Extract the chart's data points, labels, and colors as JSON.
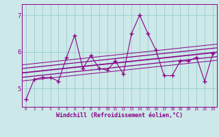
{
  "x_data": [
    0,
    1,
    2,
    3,
    4,
    5,
    6,
    7,
    8,
    9,
    10,
    11,
    12,
    13,
    14,
    15,
    16,
    17,
    18,
    19,
    20,
    21,
    22,
    23
  ],
  "y_data": [
    4.7,
    5.25,
    5.3,
    5.3,
    5.2,
    5.85,
    6.45,
    5.55,
    5.9,
    5.55,
    5.5,
    5.75,
    5.4,
    6.5,
    7.0,
    6.5,
    6.05,
    5.35,
    5.35,
    5.75,
    5.75,
    5.85,
    5.2,
    5.95
  ],
  "bg_color": "#cce8e8",
  "line_color": "#880088",
  "grid_color": "#99cccc",
  "xlabel": "Windchill (Refroidissement éolien,°C)",
  "xlim": [
    -0.5,
    23.5
  ],
  "ylim": [
    4.5,
    7.3
  ],
  "yticks": [
    5,
    6,
    7
  ],
  "xticks": [
    0,
    1,
    2,
    3,
    4,
    5,
    6,
    7,
    8,
    9,
    10,
    11,
    12,
    13,
    14,
    15,
    16,
    17,
    18,
    19,
    20,
    21,
    22,
    23
  ],
  "font_color": "#880088",
  "reg_offsets": [
    0.0,
    0.12,
    -0.12,
    0.22,
    -0.22
  ]
}
